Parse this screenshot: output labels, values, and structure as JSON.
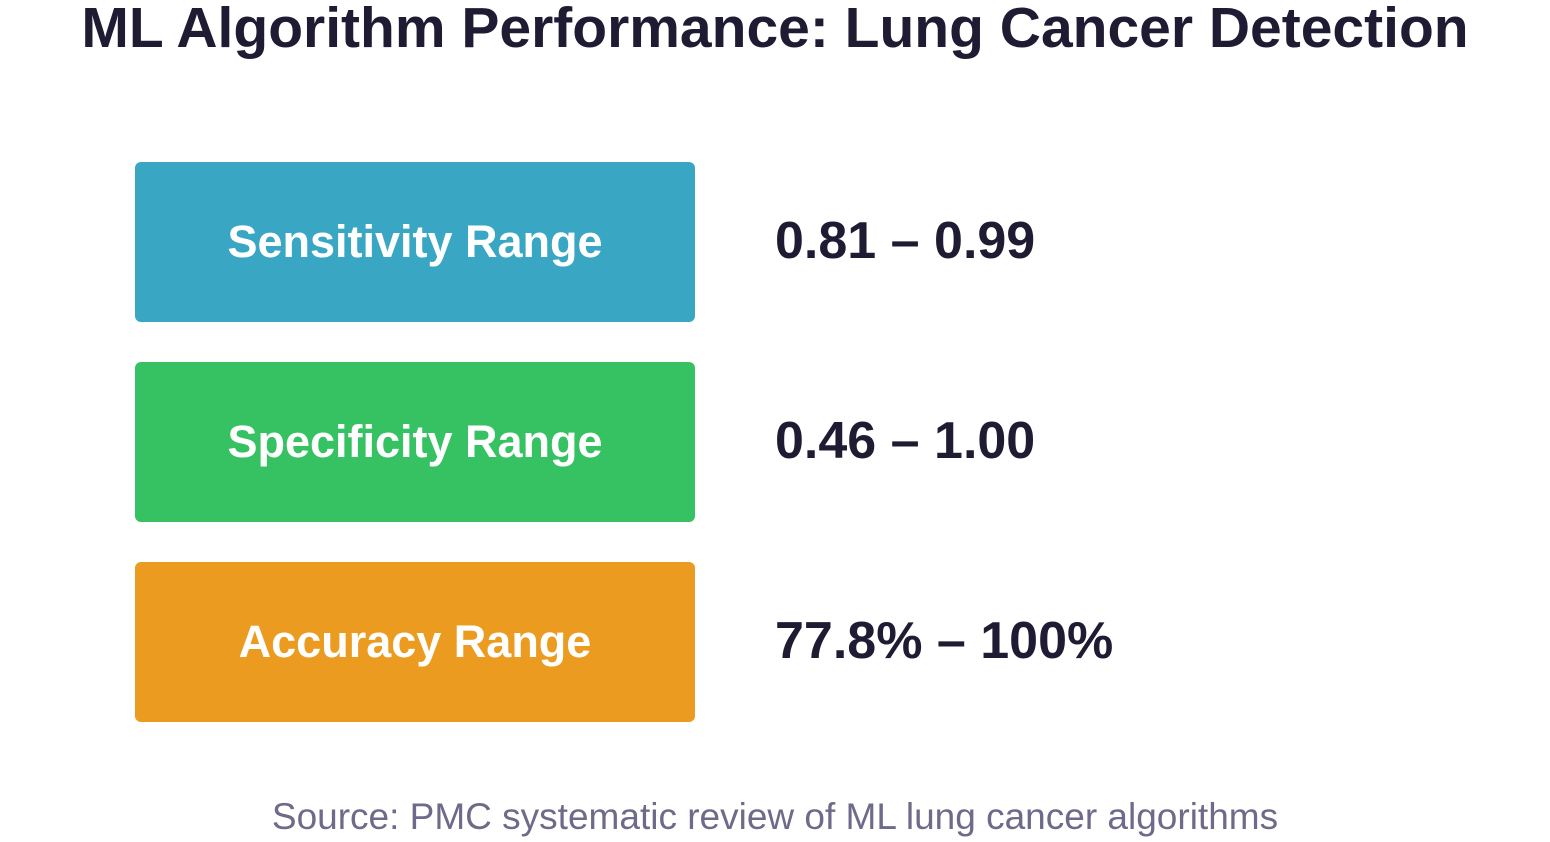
{
  "title": "ML Algorithm Performance: Lung Cancer Detection",
  "metrics": [
    {
      "label": "Sensitivity Range",
      "value": "0.81 – 0.99",
      "color": "#39a7c3"
    },
    {
      "label": "Specificity Range",
      "value": "0.46 – 1.00",
      "color": "#36c262"
    },
    {
      "label": "Accuracy Range",
      "value": "77.8% – 100%",
      "color": "#eb9c20"
    }
  ],
  "source": "Source: PMC systematic review of ML lung cancer algorithms"
}
